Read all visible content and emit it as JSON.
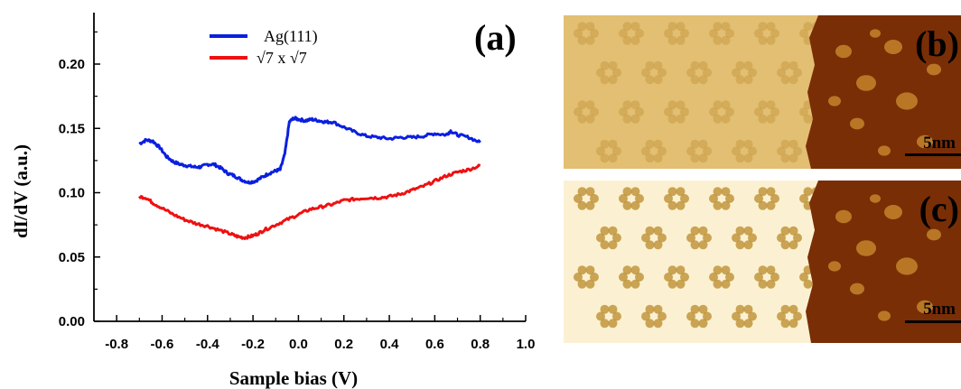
{
  "colors": {
    "series_1": "#0a1fe0",
    "series_2": "#ee1111",
    "stm_light": "#e2bf72",
    "stm_bright": "#fbf1d2",
    "stm_dark": "#7a2e06"
  },
  "chart_data": {
    "type": "line",
    "panel_label": "(a)",
    "xlabel": "Sample bias (V)",
    "ylabel": "dI/dV (a.u.)",
    "xlim": [
      -0.9,
      1.0
    ],
    "ylim": [
      0.0,
      0.24
    ],
    "x_ticks": [
      -0.8,
      -0.6,
      -0.4,
      -0.2,
      0.0,
      0.2,
      0.4,
      0.6,
      0.8,
      1.0
    ],
    "x_tick_labels": [
      "-0.8",
      "-0.6",
      "-0.4",
      "-0.2",
      "0.0",
      "0.2",
      "0.4",
      "0.6",
      "0.8",
      "1.0"
    ],
    "y_ticks": [
      0.0,
      0.05,
      0.1,
      0.15,
      0.2
    ],
    "y_tick_labels": [
      "0.00",
      "0.05",
      "0.10",
      "0.15",
      "0.20"
    ],
    "grid": false,
    "legend_position": "top-center",
    "series": [
      {
        "name": "Ag(111)",
        "x": [
          -0.7,
          -0.67,
          -0.64,
          -0.61,
          -0.58,
          -0.55,
          -0.52,
          -0.49,
          -0.46,
          -0.43,
          -0.4,
          -0.37,
          -0.34,
          -0.31,
          -0.28,
          -0.25,
          -0.22,
          -0.19,
          -0.16,
          -0.13,
          -0.1,
          -0.08,
          -0.06,
          -0.04,
          -0.02,
          0.0,
          0.03,
          0.06,
          0.09,
          0.12,
          0.15,
          0.2,
          0.25,
          0.3,
          0.35,
          0.4,
          0.45,
          0.5,
          0.55,
          0.6,
          0.65,
          0.67,
          0.7,
          0.75,
          0.8
        ],
        "y": [
          0.138,
          0.141,
          0.14,
          0.135,
          0.128,
          0.124,
          0.122,
          0.121,
          0.12,
          0.12,
          0.122,
          0.122,
          0.119,
          0.115,
          0.113,
          0.11,
          0.108,
          0.109,
          0.112,
          0.115,
          0.117,
          0.118,
          0.13,
          0.155,
          0.158,
          0.157,
          0.156,
          0.157,
          0.156,
          0.155,
          0.155,
          0.151,
          0.147,
          0.144,
          0.143,
          0.142,
          0.143,
          0.143,
          0.144,
          0.146,
          0.145,
          0.148,
          0.145,
          0.143,
          0.139
        ]
      },
      {
        "name": "√7 x √7",
        "x": [
          -0.7,
          -0.67,
          -0.64,
          -0.6,
          -0.55,
          -0.5,
          -0.45,
          -0.4,
          -0.35,
          -0.3,
          -0.27,
          -0.24,
          -0.21,
          -0.18,
          -0.15,
          -0.1,
          -0.05,
          0.0,
          0.05,
          0.1,
          0.15,
          0.2,
          0.25,
          0.3,
          0.35,
          0.4,
          0.45,
          0.5,
          0.55,
          0.6,
          0.65,
          0.7,
          0.75,
          0.8
        ],
        "y": [
          0.097,
          0.096,
          0.092,
          0.088,
          0.083,
          0.079,
          0.076,
          0.074,
          0.071,
          0.068,
          0.066,
          0.065,
          0.066,
          0.068,
          0.071,
          0.075,
          0.079,
          0.083,
          0.087,
          0.089,
          0.091,
          0.094,
          0.095,
          0.096,
          0.096,
          0.097,
          0.099,
          0.102,
          0.105,
          0.109,
          0.113,
          0.116,
          0.118,
          0.121
        ]
      }
    ]
  },
  "images": [
    {
      "label": "(b)",
      "scale_label": "5nm"
    },
    {
      "label": "(c)",
      "scale_label": "5nm"
    }
  ]
}
